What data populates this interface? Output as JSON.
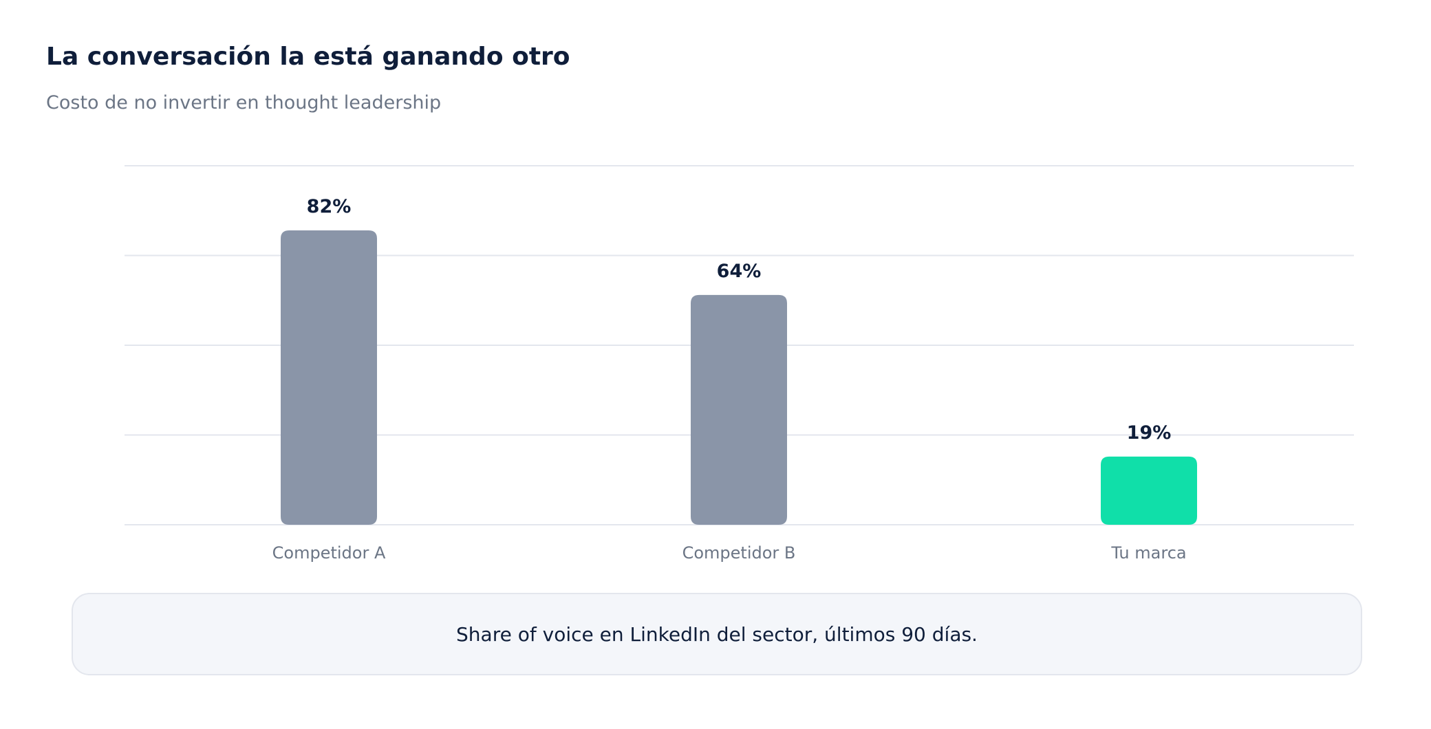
{
  "header": {
    "title": "La conversación la está ganando otro",
    "subtitle": "Costo de no invertir en thought leadership"
  },
  "chart_data": {
    "type": "bar",
    "categories": [
      "Competidor A",
      "Competidor B",
      "Tu marca"
    ],
    "values": [
      82,
      64,
      19
    ],
    "value_labels": [
      "82%",
      "64%",
      "19%"
    ],
    "ylim": [
      0,
      100
    ],
    "gridlines": [
      0,
      25,
      50,
      75,
      100
    ],
    "grid": true,
    "colors": [
      "#8a95a8",
      "#8a95a8",
      "#10dfa9"
    ],
    "label_color": "#0f1e3a",
    "tick_color": "#6b7585",
    "grid_color": "#e3e6ed"
  },
  "note": {
    "text": "Share of voice en LinkedIn del sector, últimos 90 días."
  }
}
